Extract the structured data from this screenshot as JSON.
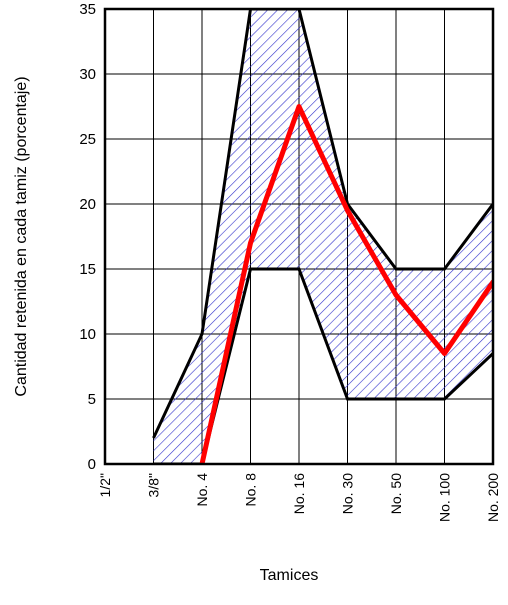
{
  "chart_data": {
    "type": "line",
    "title": "",
    "xlabel": "Tamices",
    "ylabel": "Cantidad retenida en cada tamiz (porcentaje)",
    "categories": [
      "1/2\"",
      "3/8\"",
      "No. 4",
      "No. 8",
      "No. 16",
      "No. 30",
      "No. 50",
      "No. 100",
      "No. 200"
    ],
    "ylim": [
      0,
      35
    ],
    "yticks": [
      0,
      5,
      10,
      15,
      20,
      25,
      30,
      35
    ],
    "grid": true,
    "legend": "none",
    "band": {
      "upper": [
        null,
        2,
        10,
        35,
        35,
        20,
        15,
        15,
        20
      ],
      "lower": [
        null,
        0,
        0,
        15,
        15,
        5,
        5,
        5,
        8.5
      ],
      "fill_color": "#3333cc",
      "edge_color": "#000000"
    },
    "series": [
      {
        "values": [
          null,
          null,
          0,
          17,
          27.5,
          19.5,
          13,
          8.5,
          14
        ],
        "color": "#ff0000"
      }
    ]
  }
}
